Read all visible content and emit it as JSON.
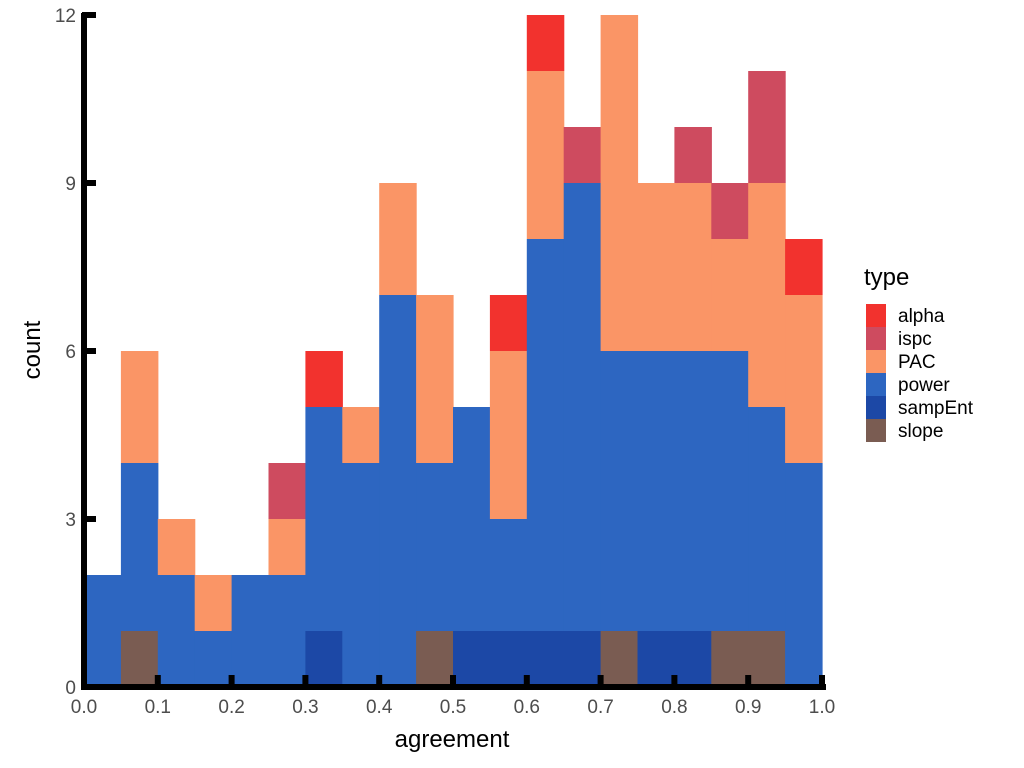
{
  "chart_data": {
    "type": "bar",
    "stacked": true,
    "xlabel": "agreement",
    "ylabel": "count",
    "xlim": [
      0.0,
      1.0
    ],
    "ylim": [
      0,
      12
    ],
    "x_ticks": [
      "0.0",
      "0.1",
      "0.2",
      "0.3",
      "0.4",
      "0.5",
      "0.6",
      "0.7",
      "0.8",
      "0.9",
      "1.0"
    ],
    "y_ticks": [
      "0",
      "3",
      "6",
      "9",
      "12"
    ],
    "grid": false,
    "legend": {
      "title": "type",
      "position": "right"
    },
    "bin_width": 0.05,
    "bins_start": [
      0.0,
      0.05,
      0.1,
      0.15,
      0.2,
      0.25,
      0.3,
      0.35,
      0.4,
      0.45,
      0.5,
      0.55,
      0.6,
      0.65,
      0.7,
      0.75,
      0.8,
      0.85,
      0.9,
      0.95
    ],
    "series": [
      {
        "name": "slope",
        "color": "#7A5C52",
        "values": [
          0,
          1,
          0,
          0,
          0,
          0,
          0,
          0,
          0,
          1,
          0,
          0,
          0,
          0,
          1,
          0,
          0,
          1,
          1,
          0
        ]
      },
      {
        "name": "sampEnt",
        "color": "#1C48A6",
        "values": [
          0,
          0,
          0,
          0,
          0,
          0,
          1,
          0,
          0,
          0,
          1,
          1,
          1,
          1,
          0,
          1,
          1,
          0,
          0,
          0
        ]
      },
      {
        "name": "power",
        "color": "#2D66C1",
        "values": [
          2,
          3,
          2,
          1,
          2,
          2,
          4,
          4,
          7,
          3,
          4,
          2,
          7,
          8,
          5,
          5,
          5,
          5,
          4,
          4
        ]
      },
      {
        "name": "PAC",
        "color": "#FA9566",
        "values": [
          0,
          2,
          1,
          1,
          0,
          1,
          0,
          1,
          2,
          3,
          0,
          3,
          3,
          0,
          6,
          3,
          3,
          2,
          4,
          3
        ]
      },
      {
        "name": "ispc",
        "color": "#CE4B5F",
        "values": [
          0,
          0,
          0,
          0,
          0,
          1,
          0,
          0,
          0,
          0,
          0,
          0,
          0,
          1,
          0,
          0,
          1,
          1,
          2,
          0
        ]
      },
      {
        "name": "alpha",
        "color": "#F2322E",
        "values": [
          0,
          0,
          0,
          0,
          0,
          0,
          1,
          0,
          0,
          0,
          0,
          1,
          1,
          0,
          0,
          0,
          0,
          0,
          0,
          1
        ]
      }
    ],
    "legend_order": [
      "alpha",
      "ispc",
      "PAC",
      "power",
      "sampEnt",
      "slope"
    ]
  }
}
